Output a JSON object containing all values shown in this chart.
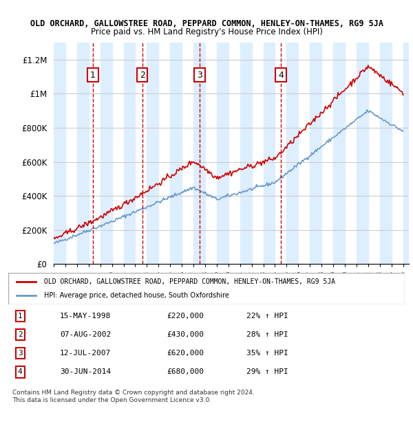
{
  "title": "OLD ORCHARD, GALLOWSTREE ROAD, PEPPARD COMMON, HENLEY-ON-THAMES, RG9 5JA",
  "subtitle": "Price paid vs. HM Land Registry's House Price Index (HPI)",
  "legend_red": "OLD ORCHARD, GALLOWSTREE ROAD, PEPPARD COMMON, HENLEY-ON-THAMES, RG9 5JA",
  "legend_blue": "HPI: Average price, detached house, South Oxfordshire",
  "footer": "Contains HM Land Registry data © Crown copyright and database right 2024.\nThis data is licensed under the Open Government Licence v3.0.",
  "sale_markers": [
    {
      "num": 1,
      "date": "15-MAY-1998",
      "price": 220000,
      "pct": "22%",
      "x": 1998.37
    },
    {
      "num": 2,
      "date": "07-AUG-2002",
      "price": 430000,
      "pct": "28%",
      "x": 2002.6
    },
    {
      "num": 3,
      "date": "12-JUL-2007",
      "price": 620000,
      "pct": "35%",
      "x": 2007.53
    },
    {
      "num": 4,
      "date": "30-JUN-2014",
      "price": 680000,
      "pct": "29%",
      "x": 2014.5
    }
  ],
  "ylim": [
    0,
    1300000
  ],
  "xlim": [
    1995,
    2025.5
  ],
  "yticks": [
    0,
    200000,
    400000,
    600000,
    800000,
    1000000,
    1200000
  ],
  "ytick_labels": [
    "£0",
    "£200K",
    "£400K",
    "£600K",
    "£800K",
    "£1M",
    "£1.2M"
  ],
  "red_color": "#cc0000",
  "blue_color": "#6699cc",
  "band_color": "#ddeeff",
  "grid_color": "#cccccc",
  "vline_color": "#cc0000",
  "box_color": "#cc0000"
}
